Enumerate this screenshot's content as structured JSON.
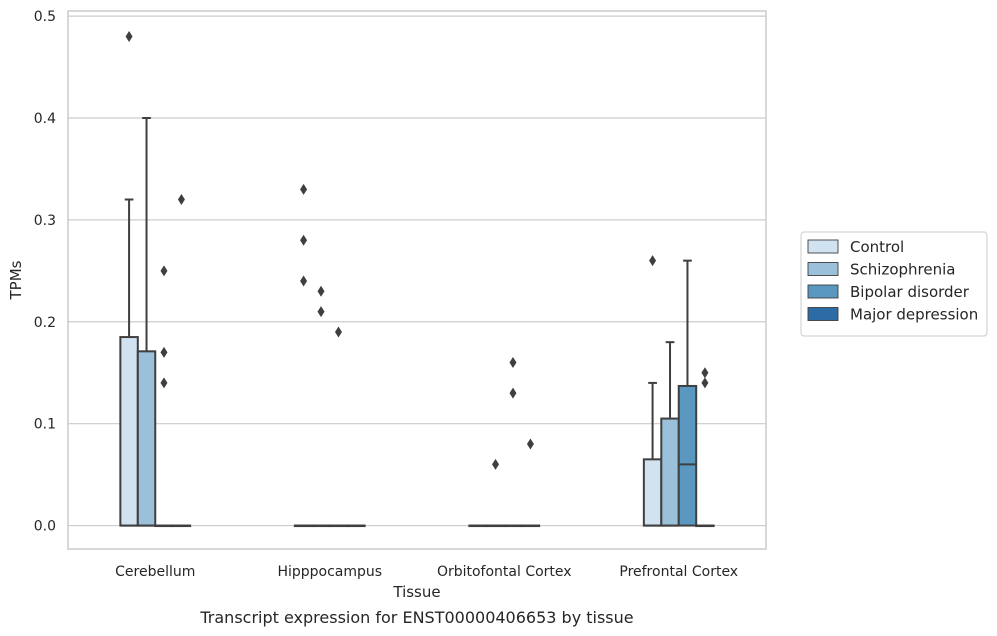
{
  "chart_data": {
    "type": "box",
    "caption": "Transcript expression for ENST00000406653 by tissue",
    "xlabel": "Tissue",
    "ylabel": "TPMs",
    "ylim": [
      -0.023,
      0.505
    ],
    "yticks": [
      0.0,
      0.1,
      0.2,
      0.3,
      0.4,
      0.5
    ],
    "ytick_labels": [
      "0.0",
      "0.1",
      "0.2",
      "0.3",
      "0.4",
      "0.5"
    ],
    "grid": "horizontal",
    "legend_position": "outside-right",
    "categories": [
      "Cerebellum",
      "Hipppocampus",
      "Orbitofontal Cortex",
      "Prefrontal Cortex"
    ],
    "series": [
      {
        "name": "Control",
        "color": "#d1e2f0",
        "boxes": [
          {
            "q1": 0.0,
            "median": 0.0,
            "q3": 0.185,
            "whisker_low": 0.0,
            "whisker_high": 0.32,
            "outliers": [
              0.48
            ]
          },
          {
            "q1": 0.0,
            "median": 0.0,
            "q3": 0.0,
            "whisker_low": 0.0,
            "whisker_high": 0.0,
            "outliers": [
              0.33,
              0.28,
              0.24
            ]
          },
          {
            "q1": 0.0,
            "median": 0.0,
            "q3": 0.0,
            "whisker_low": 0.0,
            "whisker_high": 0.0,
            "outliers": []
          },
          {
            "q1": 0.0,
            "median": 0.0,
            "q3": 0.065,
            "whisker_low": 0.0,
            "whisker_high": 0.14,
            "outliers": [
              0.26
            ]
          }
        ]
      },
      {
        "name": "Schizophrenia",
        "color": "#9ac0da",
        "boxes": [
          {
            "q1": 0.0,
            "median": 0.0,
            "q3": 0.171,
            "whisker_low": 0.0,
            "whisker_high": 0.4,
            "outliers": []
          },
          {
            "q1": 0.0,
            "median": 0.0,
            "q3": 0.0,
            "whisker_low": 0.0,
            "whisker_high": 0.0,
            "outliers": [
              0.23,
              0.21
            ]
          },
          {
            "q1": 0.0,
            "median": 0.0,
            "q3": 0.0,
            "whisker_low": 0.0,
            "whisker_high": 0.0,
            "outliers": [
              0.06
            ]
          },
          {
            "q1": 0.0,
            "median": 0.0,
            "q3": 0.105,
            "whisker_low": 0.0,
            "whisker_high": 0.18,
            "outliers": []
          }
        ]
      },
      {
        "name": "Bipolar disorder",
        "color": "#5b98c1",
        "boxes": [
          {
            "q1": 0.0,
            "median": 0.0,
            "q3": 0.0,
            "whisker_low": 0.0,
            "whisker_high": 0.0,
            "outliers": [
              0.25,
              0.17,
              0.14
            ]
          },
          {
            "q1": 0.0,
            "median": 0.0,
            "q3": 0.0,
            "whisker_low": 0.0,
            "whisker_high": 0.0,
            "outliers": [
              0.19
            ]
          },
          {
            "q1": 0.0,
            "median": 0.0,
            "q3": 0.0,
            "whisker_low": 0.0,
            "whisker_high": 0.0,
            "outliers": [
              0.16,
              0.13
            ]
          },
          {
            "q1": 0.0,
            "median": 0.06,
            "q3": 0.137,
            "whisker_low": 0.0,
            "whisker_high": 0.26,
            "outliers": []
          }
        ]
      },
      {
        "name": "Major depression",
        "color": "#2d6ba6",
        "boxes": [
          {
            "q1": 0.0,
            "median": 0.0,
            "q3": 0.0,
            "whisker_low": 0.0,
            "whisker_high": 0.0,
            "outliers": [
              0.32
            ]
          },
          {
            "q1": 0.0,
            "median": 0.0,
            "q3": 0.0,
            "whisker_low": 0.0,
            "whisker_high": 0.0,
            "outliers": []
          },
          {
            "q1": 0.0,
            "median": 0.0,
            "q3": 0.0,
            "whisker_low": 0.0,
            "whisker_high": 0.0,
            "outliers": [
              0.08
            ]
          },
          {
            "q1": 0.0,
            "median": 0.0,
            "q3": 0.0,
            "whisker_low": 0.0,
            "whisker_high": 0.0,
            "outliers": [
              0.15,
              0.14
            ]
          }
        ]
      }
    ]
  }
}
